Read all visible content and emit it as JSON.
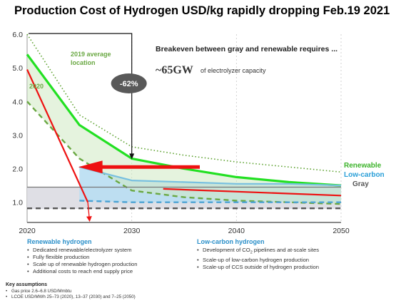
{
  "title": "Production Cost of Hydrogen  USD/kg rapidly dropping Feb.19 2021",
  "chart_data": {
    "type": "line",
    "x_ticks": [
      2020,
      2030,
      2040,
      2050
    ],
    "y_ticks": [
      "1.0",
      "2.0",
      "3.0",
      "4.0",
      "5.0",
      "6.0"
    ],
    "xlim": [
      2020,
      2050
    ],
    "ylim": [
      0.4,
      6.0
    ],
    "series": [
      {
        "name": "2019 average location",
        "style": "dotted",
        "color": "#5aa02c",
        "points": [
          [
            2020,
            6.0
          ],
          [
            2025,
            3.6
          ],
          [
            2030,
            2.65
          ],
          [
            2035,
            2.4
          ],
          [
            2040,
            2.2
          ],
          [
            2045,
            2.05
          ],
          [
            2050,
            1.9
          ]
        ]
      },
      {
        "name": "2020",
        "style": "dashed",
        "color": "#6aa843",
        "points": [
          [
            2020,
            4.0
          ],
          [
            2025,
            2.3
          ],
          [
            2030,
            1.35
          ],
          [
            2035,
            1.15
          ],
          [
            2040,
            1.05
          ],
          [
            2045,
            1.0
          ],
          [
            2050,
            0.95
          ]
        ]
      },
      {
        "name": "Renewable",
        "style": "solid",
        "color": "#22e022",
        "points": [
          [
            2020,
            5.4
          ],
          [
            2025,
            3.3
          ],
          [
            2030,
            2.3
          ],
          [
            2035,
            2.0
          ],
          [
            2040,
            1.75
          ],
          [
            2045,
            1.6
          ],
          [
            2050,
            1.5
          ]
        ]
      },
      {
        "name": "Low-carbon",
        "style": "solid",
        "color": "#78c0e0",
        "points": [
          [
            2025,
            2.05
          ],
          [
            2030,
            1.65
          ],
          [
            2035,
            1.6
          ],
          [
            2040,
            1.55
          ],
          [
            2045,
            1.55
          ],
          [
            2050,
            1.5
          ]
        ]
      },
      {
        "name": "Gray",
        "style": "solid",
        "color": "#777777",
        "points": [
          [
            2020,
            1.45
          ],
          [
            2050,
            1.45
          ]
        ]
      },
      {
        "name": "",
        "style": "dashed",
        "color": "#4da3d4",
        "points": [
          [
            2025,
            1.05
          ],
          [
            2030,
            1.0
          ],
          [
            2040,
            1.0
          ],
          [
            2050,
            1.0
          ]
        ]
      },
      {
        "name": "",
        "style": "dashed",
        "color": "#555555",
        "points": [
          [
            2020,
            0.82
          ],
          [
            2050,
            0.82
          ]
        ]
      },
      {
        "name": "",
        "style": "solid",
        "color": "#ee1111",
        "points": [
          [
            2033,
            1.4
          ],
          [
            2050,
            1.2
          ]
        ]
      },
      {
        "name": "",
        "style": "solid",
        "color": "#ee1111",
        "points": [
          [
            2020,
            4.95
          ],
          [
            2025.8,
            1.0
          ]
        ]
      }
    ],
    "annotations": {
      "label_2019": [
        "2019 average",
        "location"
      ],
      "label_2020": "2020",
      "pct_badge": "-62%",
      "breakeven_text": "Breakeven between gray and renewable requires ...",
      "gw_value": "~65GW",
      "gw_text": "of electrolyzer capacity",
      "legend": [
        "Renewable",
        "Low-carbon",
        "Gray"
      ]
    },
    "colors": {
      "renewable": "#22e022",
      "lowcarbon": "#2a9fd8",
      "gray": "#555555",
      "red": "#ee1111"
    }
  },
  "renewable_hydrogen": {
    "title": "Renewable hydrogen",
    "items": [
      "Dedicated renewable/electrolyzer system",
      "Fully flexible production",
      "Scale up of renewable hydrogen production",
      "Additional costs to reach end supply price"
    ]
  },
  "lowcarbon_hydrogen": {
    "title": "Low-carbon hydrogen",
    "item1_pre": "Development of CO",
    "item1_sub": "2",
    "item1_post": " pipelines and at-scale sites",
    "items": [
      "Scale-up of low-carbon hydrogen production",
      "Scale-up of CCS outside of hydrogen production"
    ]
  },
  "key_assumptions": {
    "title": "Key assumptions",
    "items": [
      "Gas price 2.6–6.8 USD/Mmbtu",
      "LCOE USD/MWh 25–73 (2020), 13–37 (2030) and 7–25 (2050)"
    ]
  }
}
